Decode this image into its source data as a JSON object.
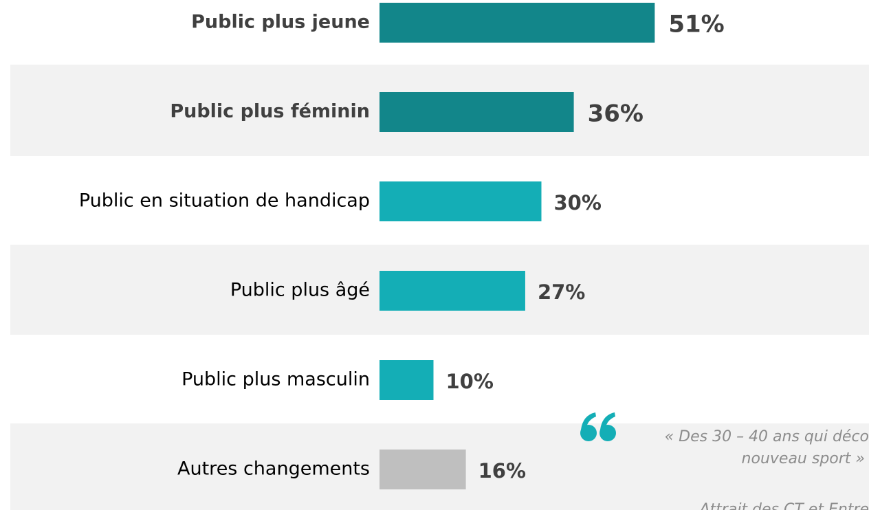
{
  "chart_data": {
    "type": "hbar",
    "categories": [
      "Public plus jeune",
      "Public plus féminin",
      "Public en situation de handicap",
      "Public plus âgé",
      "Public plus masculin",
      "Autres changements"
    ],
    "values": [
      51,
      36,
      30,
      27,
      10,
      16
    ],
    "value_labels": [
      "51%",
      "36%",
      "30%",
      "27%",
      "10%",
      "16%"
    ],
    "colors": [
      "#12868a",
      "#12868a",
      "#14aeb6",
      "#14aeb6",
      "#14aeb6",
      "#bfbfbf"
    ],
    "bold_labels": [
      true,
      true,
      false,
      false,
      false,
      false
    ],
    "xlim": [
      0,
      100
    ],
    "annotations": [
      "« Des 30 – 40 ans qui déco",
      "nouveau sport »",
      "Attrait des CT et Entre"
    ]
  }
}
